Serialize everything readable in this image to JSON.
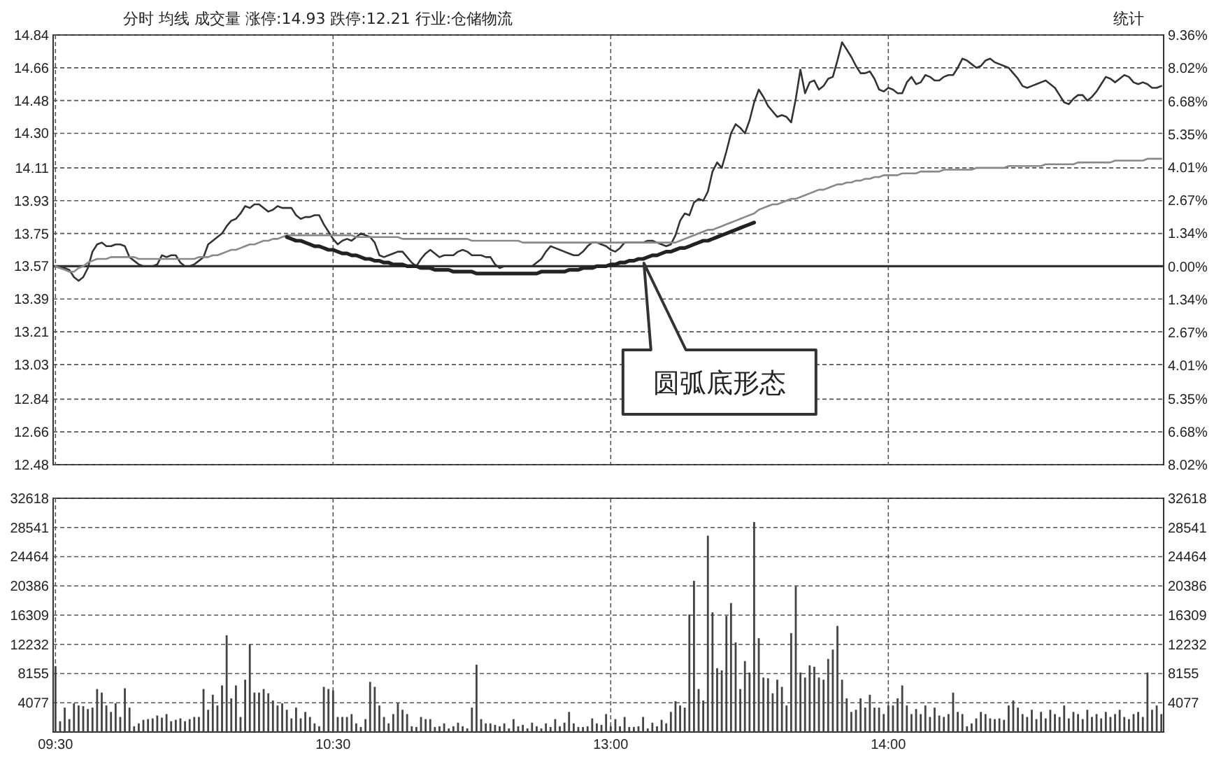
{
  "chart_data": [
    {
      "type": "line",
      "title": "分时 均线 成交量 涨停:14.93 跌停:12.21 行业:仓储物流",
      "categories": [
        null,
        null,
        null,
        null,
        null,
        null,
        null,
        null,
        null,
        null,
        null,
        null,
        null,
        null,
        null,
        null,
        null,
        null,
        null,
        null,
        null,
        null,
        null,
        null,
        null,
        null,
        null,
        null,
        null,
        null,
        null,
        null,
        null,
        null,
        null,
        null,
        null,
        null,
        null,
        null,
        null,
        null,
        null,
        null,
        null,
        null,
        null,
        null,
        null,
        null,
        null,
        null,
        null,
        null,
        null,
        null,
        null,
        null,
        null,
        null,
        null,
        null,
        null,
        null,
        null,
        null,
        null,
        null,
        null,
        null,
        null,
        null,
        null,
        null,
        null,
        null,
        null,
        null,
        null,
        null,
        null,
        null,
        null,
        null,
        null,
        null,
        null,
        null,
        null,
        null,
        null,
        null,
        null,
        null,
        null,
        null,
        null,
        null,
        null,
        null,
        null,
        null,
        null,
        null,
        null,
        null,
        null,
        null,
        null,
        null,
        null,
        null,
        null,
        null,
        null,
        null,
        null,
        null,
        null,
        null,
        null,
        null,
        null,
        null,
        null,
        null,
        null,
        null,
        null,
        null,
        null,
        null,
        null,
        null,
        null,
        null,
        null,
        null,
        null,
        null,
        null,
        null,
        null,
        null,
        null,
        null,
        null,
        null,
        null,
        null,
        null,
        null,
        null,
        null,
        null,
        null,
        null,
        null,
        null,
        null,
        null,
        null,
        null,
        null,
        null,
        null,
        null,
        null,
        null,
        null,
        null,
        null,
        null,
        null,
        null,
        null,
        null,
        null,
        null,
        null,
        null,
        null,
        null,
        null,
        null,
        null,
        null,
        null,
        null,
        null,
        null,
        null,
        null,
        null,
        null,
        null,
        null,
        null,
        null,
        null,
        null,
        null,
        null,
        null,
        null,
        null,
        null,
        null,
        null,
        null,
        null,
        null,
        null,
        null,
        null,
        null,
        null,
        null,
        null,
        null,
        null,
        null,
        null,
        null,
        null,
        null,
        null,
        null,
        null,
        null,
        null,
        null,
        null,
        null,
        null,
        null,
        null,
        null,
        null,
        null
      ],
      "ylim": [
        12.48,
        14.84
      ],
      "yticks": [
        {
          "value": 12.48,
          "label": "12.48"
        },
        {
          "value": 12.66,
          "label": "12.66"
        },
        {
          "value": 12.84,
          "label": "12.84"
        },
        {
          "value": 13.03,
          "label": "13.03"
        },
        {
          "value": 13.21,
          "label": "13.21"
        },
        {
          "value": 13.39,
          "label": "13.39"
        },
        {
          "value": 13.57,
          "label": "13.57"
        },
        {
          "value": 13.75,
          "label": "13.75"
        },
        {
          "value": 13.93,
          "label": "13.93"
        },
        {
          "value": 14.11,
          "label": "14.11"
        },
        {
          "value": 14.3,
          "label": "14.30"
        },
        {
          "value": 14.48,
          "label": "14.48"
        },
        {
          "value": 14.66,
          "label": "14.66"
        },
        {
          "value": 14.84,
          "label": "14.84"
        }
      ],
      "y2lim": [
        -8.02,
        9.36
      ],
      "y2ticks": [
        {
          "value": -8.02,
          "label": "8.02%"
        },
        {
          "value": -6.68,
          "label": "6.68%"
        },
        {
          "value": -5.35,
          "label": "5.35%"
        },
        {
          "value": -4.01,
          "label": "4.01%"
        },
        {
          "value": -2.67,
          "label": "2.67%"
        },
        {
          "value": -1.34,
          "label": "1.34%"
        },
        {
          "value": 0,
          "label": "0.00%"
        },
        {
          "value": 1.34,
          "label": "1.34%"
        },
        {
          "value": 2.67,
          "label": "2.67%"
        },
        {
          "value": 4.01,
          "label": "4.01%"
        },
        {
          "value": 5.35,
          "label": "5.35%"
        },
        {
          "value": 6.68,
          "label": "6.68%"
        },
        {
          "value": 8.02,
          "label": "8.02%"
        },
        {
          "value": 9.36,
          "label": "9.36%"
        }
      ],
      "tick_labels": "y",
      "grid": true,
      "line_style": "solid",
      "ref_lines": [
        {
          "axis": "y",
          "value": 13.57,
          "color": "#333333"
        }
      ],
      "annotations": [
        "圆弧底形态",
        "统计"
      ],
      "series": [
        {
          "color": "#333333",
          "values": [
            13.57,
            13.56,
            13.56,
            13.55,
            13.51,
            13.49,
            13.51,
            13.56,
            13.65,
            13.69,
            13.7,
            13.68,
            13.68,
            13.69,
            13.69,
            13.68,
            13.62,
            13.6,
            13.58,
            13.57,
            13.57,
            13.57,
            13.58,
            13.63,
            13.62,
            13.63,
            13.63,
            13.59,
            13.57,
            13.57,
            13.58,
            13.6,
            13.62,
            13.69,
            13.71,
            13.73,
            13.75,
            13.79,
            13.82,
            13.83,
            13.86,
            13.9,
            13.89,
            13.91,
            13.91,
            13.89,
            13.87,
            13.88,
            13.9,
            13.89,
            13.89,
            13.89,
            13.85,
            13.83,
            13.84,
            13.84,
            13.85,
            13.85,
            13.8,
            13.76,
            13.72,
            13.69,
            13.71,
            13.72,
            13.71,
            13.73,
            13.75,
            13.74,
            13.73,
            13.7,
            13.63,
            13.62,
            13.63,
            13.64,
            13.65,
            13.65,
            13.62,
            13.59,
            13.57,
            13.61,
            13.64,
            13.66,
            13.64,
            13.62,
            13.63,
            13.63,
            13.63,
            13.65,
            13.66,
            13.65,
            13.63,
            13.63,
            13.63,
            13.62,
            13.62,
            13.58,
            13.56,
            13.57,
            13.57,
            13.57,
            13.57,
            13.57,
            13.57,
            13.57,
            13.59,
            13.61,
            13.65,
            13.68,
            13.67,
            13.66,
            13.65,
            13.64,
            13.63,
            13.63,
            13.65,
            13.68,
            13.7,
            13.7,
            13.69,
            13.68,
            13.66,
            13.65,
            13.67,
            13.7,
            13.7,
            13.7,
            13.7,
            13.7,
            13.71,
            13.71,
            13.7,
            13.69,
            13.68,
            13.69,
            13.74,
            13.82,
            13.86,
            13.85,
            13.92,
            13.94,
            13.93,
            13.98,
            14.09,
            14.14,
            14.11,
            14.2,
            14.3,
            14.35,
            14.33,
            14.3,
            14.37,
            14.47,
            14.54,
            14.5,
            14.45,
            14.42,
            14.39,
            14.4,
            14.39,
            14.36,
            14.49,
            14.65,
            14.52,
            14.58,
            14.59,
            14.54,
            14.56,
            14.6,
            14.61,
            14.7,
            14.8,
            14.76,
            14.72,
            14.67,
            14.63,
            14.63,
            14.64,
            14.6,
            14.54,
            14.53,
            14.55,
            14.54,
            14.52,
            14.52,
            14.58,
            14.61,
            14.57,
            14.58,
            14.62,
            14.61,
            14.59,
            14.59,
            14.61,
            14.62,
            14.62,
            14.66,
            14.71,
            14.7,
            14.68,
            14.66,
            14.67,
            14.7,
            14.71,
            14.69,
            14.68,
            14.67,
            14.66,
            14.63,
            14.6,
            14.56,
            14.55,
            14.56,
            14.57,
            14.58,
            14.59,
            14.57,
            14.55,
            14.51,
            14.47,
            14.46,
            14.49,
            14.51,
            14.51,
            14.48,
            14.5,
            14.53,
            14.57,
            14.61,
            14.6,
            14.58,
            14.6,
            14.62,
            14.61,
            14.58,
            14.57,
            14.58,
            14.57,
            14.55,
            14.55,
            14.56
          ]
        },
        {
          "color": "#888888",
          "values": [
            13.57,
            13.56,
            13.55,
            13.54,
            13.54,
            13.56,
            13.57,
            13.59,
            13.6,
            13.61,
            13.61,
            13.61,
            13.62,
            13.62,
            13.62,
            13.62,
            13.62,
            13.62,
            13.61,
            13.61,
            13.61,
            13.61,
            13.61,
            13.61,
            13.61,
            13.61,
            13.61,
            13.61,
            13.61,
            13.61,
            13.61,
            13.62,
            13.62,
            13.62,
            13.63,
            13.63,
            13.64,
            13.65,
            13.66,
            13.66,
            13.67,
            13.68,
            13.69,
            13.69,
            13.7,
            13.71,
            13.71,
            13.72,
            13.72,
            13.73,
            13.74,
            13.74,
            13.74,
            13.74,
            13.74,
            13.74,
            13.74,
            13.74,
            13.74,
            13.74,
            13.74,
            13.74,
            13.74,
            13.74,
            13.74,
            13.73,
            13.73,
            13.73,
            13.73,
            13.73,
            13.73,
            13.73,
            13.73,
            13.73,
            13.73,
            13.72,
            13.72,
            13.72,
            13.72,
            13.72,
            13.72,
            13.72,
            13.72,
            13.72,
            13.72,
            13.72,
            13.72,
            13.72,
            13.72,
            13.72,
            13.71,
            13.71,
            13.71,
            13.71,
            13.71,
            13.71,
            13.71,
            13.71,
            13.71,
            13.71,
            13.71,
            13.7,
            13.7,
            13.7,
            13.7,
            13.7,
            13.7,
            13.7,
            13.7,
            13.7,
            13.7,
            13.7,
            13.7,
            13.7,
            13.7,
            13.7,
            13.7,
            13.7,
            13.7,
            13.7,
            13.7,
            13.7,
            13.7,
            13.7,
            13.7,
            13.7,
            13.7,
            13.7,
            13.7,
            13.7,
            13.7,
            13.7,
            13.7,
            13.7,
            13.7,
            13.71,
            13.72,
            13.73,
            13.74,
            13.75,
            13.76,
            13.77,
            13.77,
            13.78,
            13.79,
            13.8,
            13.81,
            13.82,
            13.83,
            13.84,
            13.85,
            13.86,
            13.88,
            13.89,
            13.9,
            13.91,
            13.91,
            13.92,
            13.93,
            13.94,
            13.94,
            13.95,
            13.96,
            13.97,
            13.98,
            13.99,
            13.99,
            14.0,
            14.01,
            14.02,
            14.02,
            14.03,
            14.03,
            14.04,
            14.04,
            14.05,
            14.05,
            14.06,
            14.06,
            14.07,
            14.07,
            14.07,
            14.07,
            14.08,
            14.08,
            14.08,
            14.08,
            14.09,
            14.09,
            14.09,
            14.09,
            14.09,
            14.1,
            14.1,
            14.1,
            14.1,
            14.1,
            14.1,
            14.1,
            14.11,
            14.11,
            14.11,
            14.11,
            14.11,
            14.11,
            14.11,
            14.12,
            14.12,
            14.12,
            14.12,
            14.12,
            14.12,
            14.12,
            14.12,
            14.13,
            14.13,
            14.13,
            14.13,
            14.13,
            14.13,
            14.13,
            14.14,
            14.14,
            14.14,
            14.14,
            14.14,
            14.14,
            14.14,
            14.14,
            14.15,
            14.15,
            14.15,
            14.15,
            14.15,
            14.15,
            14.15,
            14.16,
            14.16,
            14.16,
            14.16
          ]
        },
        {
          "color": "#222222",
          "values": [
            null,
            null,
            null,
            null,
            null,
            null,
            null,
            null,
            null,
            null,
            null,
            null,
            null,
            null,
            null,
            null,
            null,
            null,
            null,
            null,
            null,
            null,
            null,
            null,
            null,
            null,
            null,
            null,
            null,
            null,
            null,
            null,
            null,
            null,
            null,
            null,
            null,
            null,
            null,
            null,
            null,
            null,
            null,
            null,
            null,
            null,
            null,
            null,
            null,
            null,
            13.73,
            13.72,
            13.71,
            13.71,
            13.7,
            13.69,
            13.68,
            13.68,
            13.67,
            13.66,
            13.66,
            13.65,
            13.64,
            13.64,
            13.63,
            13.63,
            13.62,
            13.61,
            13.61,
            13.6,
            13.6,
            13.59,
            13.59,
            13.58,
            13.58,
            13.58,
            13.57,
            13.57,
            13.57,
            13.56,
            13.56,
            13.56,
            13.55,
            13.55,
            13.55,
            13.55,
            13.54,
            13.54,
            13.54,
            13.54,
            13.54,
            13.53,
            13.53,
            13.53,
            13.53,
            13.53,
            13.53,
            13.53,
            13.53,
            13.53,
            13.53,
            13.53,
            13.53,
            13.53,
            13.53,
            13.54,
            13.54,
            13.54,
            13.54,
            13.54,
            13.54,
            13.55,
            13.55,
            13.55,
            13.56,
            13.56,
            13.56,
            13.57,
            13.57,
            13.57,
            13.58,
            13.58,
            13.59,
            13.59,
            13.6,
            13.6,
            13.61,
            13.61,
            13.62,
            13.63,
            13.63,
            13.64,
            13.65,
            13.65,
            13.66,
            13.67,
            13.67,
            13.68,
            13.69,
            13.7,
            13.71,
            13.71,
            13.72,
            13.73,
            13.74,
            13.75,
            13.76,
            13.77,
            13.78,
            13.79,
            13.8,
            13.81,
            null,
            null,
            null,
            null,
            null,
            null,
            null,
            null,
            null,
            null,
            null,
            null,
            null,
            null,
            null,
            null,
            null,
            null,
            null,
            null,
            null,
            null,
            null,
            null,
            null,
            null,
            null,
            null,
            null,
            null,
            null,
            null,
            null,
            null,
            null,
            null,
            null,
            null,
            null,
            null,
            null,
            null,
            null,
            null,
            null,
            null,
            null,
            null,
            null,
            null,
            null,
            null,
            null,
            null,
            null,
            null,
            null,
            null,
            null,
            null,
            null,
            null,
            null,
            null,
            null,
            null,
            null,
            null,
            null,
            null,
            null,
            null,
            null,
            null,
            null,
            null,
            null,
            null,
            null,
            null,
            null,
            null,
            null,
            null,
            null,
            null,
            null,
            null
          ]
        }
      ]
    },
    {
      "type": "bar",
      "color": "#444444",
      "grid": true,
      "categories": [
        "09:30",
        null,
        null,
        null,
        null,
        null,
        null,
        null,
        null,
        null,
        null,
        null,
        null,
        null,
        null,
        null,
        null,
        null,
        null,
        null,
        null,
        null,
        null,
        null,
        null,
        null,
        null,
        null,
        null,
        null,
        null,
        null,
        null,
        null,
        null,
        null,
        null,
        null,
        null,
        null,
        null,
        null,
        null,
        null,
        null,
        null,
        null,
        null,
        null,
        null,
        null,
        null,
        null,
        null,
        null,
        null,
        null,
        null,
        null,
        null,
        "10:30",
        null,
        null,
        null,
        null,
        null,
        null,
        null,
        null,
        null,
        null,
        null,
        null,
        null,
        null,
        null,
        null,
        null,
        null,
        null,
        null,
        null,
        null,
        null,
        null,
        null,
        null,
        null,
        null,
        null,
        null,
        null,
        null,
        null,
        null,
        null,
        null,
        null,
        null,
        null,
        null,
        null,
        null,
        null,
        null,
        null,
        null,
        null,
        null,
        null,
        null,
        null,
        null,
        null,
        null,
        null,
        null,
        null,
        null,
        null,
        "13:00",
        null,
        null,
        null,
        null,
        null,
        null,
        null,
        null,
        null,
        null,
        null,
        null,
        null,
        null,
        null,
        null,
        null,
        null,
        null,
        null,
        null,
        null,
        null,
        null,
        null,
        null,
        null,
        null,
        null,
        null,
        null,
        null,
        null,
        null,
        null,
        null,
        null,
        null,
        null,
        null,
        null,
        null,
        null,
        null,
        null,
        null,
        null,
        null,
        null,
        null,
        null,
        null,
        null,
        null,
        null,
        null,
        null,
        null,
        null,
        "14:00",
        null,
        null,
        null,
        null,
        null,
        null,
        null,
        null,
        null,
        null,
        null,
        null,
        null,
        null,
        null,
        null,
        null,
        null,
        null,
        null,
        null,
        null,
        null,
        null,
        null,
        null,
        null,
        null,
        null,
        null,
        null,
        null,
        null,
        null,
        null,
        null,
        null,
        null,
        null,
        null,
        null,
        null,
        null,
        null,
        null,
        null,
        null,
        null,
        null,
        null,
        null,
        null,
        null,
        null,
        null,
        null,
        null,
        null,
        null
      ],
      "ylim": [
        0,
        32618
      ],
      "yticks": [
        4077,
        8155,
        12232,
        16309,
        20386,
        24464,
        28541,
        32618
      ],
      "y2lim": [
        0,
        32618
      ],
      "y2ticks": [
        4077,
        8155,
        12232,
        16309,
        20386,
        24464,
        28541,
        32618
      ],
      "values": [
        9200,
        1500,
        3400,
        1800,
        4000,
        3700,
        3600,
        3200,
        3400,
        6000,
        5500,
        3700,
        2800,
        4000,
        2100,
        6100,
        3400,
        800,
        1200,
        1700,
        1800,
        1900,
        2300,
        2000,
        2500,
        1500,
        1700,
        1900,
        1500,
        1800,
        2100,
        2100,
        6000,
        3100,
        5200,
        3700,
        6500,
        13500,
        4700,
        6500,
        2100,
        7300,
        12200,
        5500,
        5500,
        6000,
        5400,
        4400,
        3700,
        4000,
        3100,
        1900,
        3400,
        1900,
        2800,
        2100,
        1200,
        800,
        6300,
        6000,
        5800,
        2100,
        2100,
        2100,
        2500,
        1200,
        700,
        1800,
        7000,
        6300,
        3700,
        2100,
        1200,
        2500,
        4000,
        3100,
        2500,
        800,
        700,
        2100,
        1800,
        1800,
        700,
        800,
        1200,
        500,
        800,
        1300,
        800,
        500,
        3400,
        9400,
        1800,
        1200,
        1200,
        1000,
        800,
        1200,
        500,
        1800,
        800,
        1000,
        500,
        1300,
        800,
        500,
        1200,
        700,
        1800,
        800,
        1300,
        2800,
        1200,
        700,
        700,
        800,
        1900,
        1200,
        1000,
        2500,
        800,
        1800,
        800,
        2100,
        700,
        700,
        800,
        2100,
        500,
        1300,
        800,
        1700,
        1200,
        2800,
        4300,
        3700,
        3400,
        16400,
        21100,
        6000,
        4400,
        27400,
        16700,
        8900,
        8600,
        16200,
        18000,
        12500,
        6000,
        9900,
        8300,
        29300,
        13100,
        7600,
        7500,
        5400,
        7300,
        6300,
        3700,
        13800,
        20300,
        8300,
        7600,
        9300,
        9100,
        7600,
        7300,
        10200,
        11500,
        14800,
        7300,
        4700,
        2800,
        3100,
        4700,
        3400,
        5200,
        3400,
        3400,
        2500,
        3700,
        3700,
        4700,
        6500,
        3700,
        2500,
        3200,
        2500,
        3700,
        2100,
        3400,
        2300,
        2100,
        2500,
        5500,
        2800,
        2500,
        800,
        1200,
        1900,
        2800,
        2500,
        1900,
        1800,
        1900,
        1700,
        3700,
        4400,
        3400,
        2500,
        2100,
        3100,
        1800,
        2800,
        1900,
        3100,
        2500,
        2100,
        3700,
        1900,
        2800,
        2500,
        1800,
        3100,
        2100,
        2500,
        1900,
        2800,
        2100,
        2500,
        3100,
        2100,
        1800,
        2500,
        2800,
        2100,
        8300,
        3100,
        3700,
        2500
      ]
    }
  ]
}
